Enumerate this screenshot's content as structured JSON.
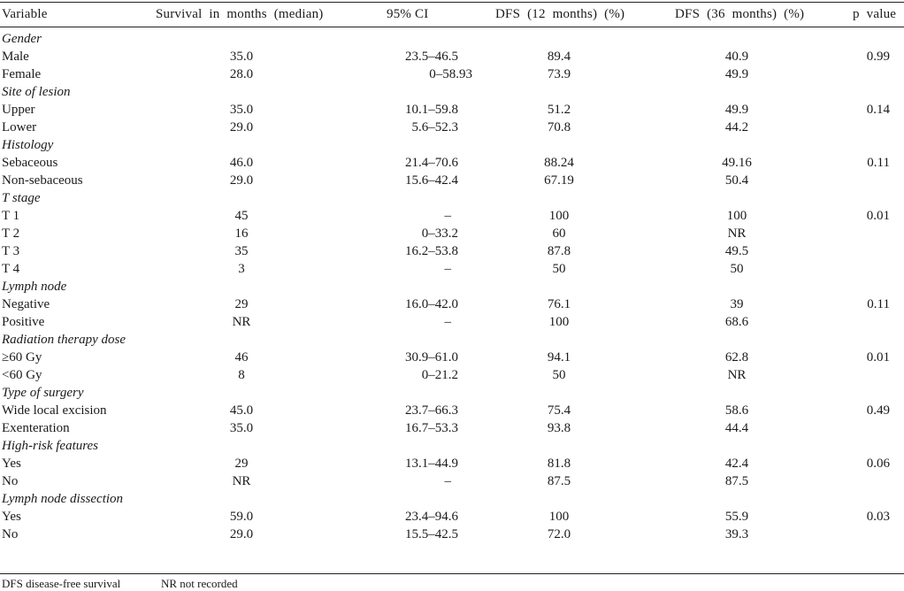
{
  "table": {
    "headers": [
      "Variable",
      "Survival in months (median)",
      "95% CI",
      "DFS (12 months) (%)",
      "DFS (36 months) (%)",
      "p value"
    ],
    "rows": [
      {
        "kind": "section",
        "variable": "Gender"
      },
      {
        "kind": "data",
        "variable": "Male",
        "survival": "35.0",
        "ci": "23.5–46.5",
        "dfs12": "89.4",
        "dfs36": "40.9",
        "p": "0.99"
      },
      {
        "kind": "data",
        "variable": "Female",
        "survival": "28.0",
        "ci": "0–58.93",
        "dfs12": "73.9",
        "dfs36": "49.9",
        "p": ""
      },
      {
        "kind": "section",
        "variable": "Site of lesion"
      },
      {
        "kind": "data",
        "variable": "Upper",
        "survival": "35.0",
        "ci": "10.1–59.8",
        "dfs12": "51.2",
        "dfs36": "49.9",
        "p": "0.14"
      },
      {
        "kind": "data",
        "variable": "Lower",
        "survival": "29.0",
        "ci": "5.6–52.3",
        "dfs12": "70.8",
        "dfs36": "44.2",
        "p": ""
      },
      {
        "kind": "section",
        "variable": "Histology"
      },
      {
        "kind": "data",
        "variable": "Sebaceous",
        "survival": "46.0",
        "ci": "21.4–70.6",
        "dfs12": "88.24",
        "dfs36": "49.16",
        "p": "0.11"
      },
      {
        "kind": "data",
        "variable": "Non-sebaceous",
        "survival": "29.0",
        "ci": "15.6–42.4",
        "dfs12": "67.19",
        "dfs36": "50.4",
        "p": ""
      },
      {
        "kind": "section",
        "variable": "T stage"
      },
      {
        "kind": "data",
        "variable": "T 1",
        "survival": "45",
        "ci": "–",
        "dfs12": "100",
        "dfs36": "100",
        "p": "0.01"
      },
      {
        "kind": "data",
        "variable": "T 2",
        "survival": "16",
        "ci": "0–33.2",
        "dfs12": "60",
        "dfs36": "NR",
        "p": ""
      },
      {
        "kind": "data",
        "variable": "T 3",
        "survival": "35",
        "ci": "16.2–53.8",
        "dfs12": "87.8",
        "dfs36": "49.5",
        "p": ""
      },
      {
        "kind": "data",
        "variable": "T 4",
        "survival": "3",
        "ci": "–",
        "dfs12": "50",
        "dfs36": "50",
        "p": ""
      },
      {
        "kind": "section",
        "variable": "Lymph node"
      },
      {
        "kind": "data",
        "variable": "Negative",
        "survival": "29",
        "ci": "16.0–42.0",
        "dfs12": "76.1",
        "dfs36": "39",
        "p": "0.11"
      },
      {
        "kind": "data",
        "variable": "Positive",
        "survival": "NR",
        "ci": "–",
        "dfs12": "100",
        "dfs36": "68.6",
        "p": ""
      },
      {
        "kind": "section",
        "variable": "Radiation therapy dose"
      },
      {
        "kind": "data",
        "variable": "≥60 Gy",
        "survival": "46",
        "ci": "30.9–61.0",
        "dfs12": "94.1",
        "dfs36": "62.8",
        "p": "0.01"
      },
      {
        "kind": "data",
        "variable": "<60 Gy",
        "survival": "8",
        "ci": "0–21.2",
        "dfs12": "50",
        "dfs36": "NR",
        "p": ""
      },
      {
        "kind": "section",
        "variable": "Type of surgery"
      },
      {
        "kind": "data",
        "variable": "Wide local excision",
        "survival": "45.0",
        "ci": "23.7–66.3",
        "dfs12": "75.4",
        "dfs36": "58.6",
        "p": "0.49"
      },
      {
        "kind": "data",
        "variable": "Exenteration",
        "survival": "35.0",
        "ci": "16.7–53.3",
        "dfs12": "93.8",
        "dfs36": "44.4",
        "p": ""
      },
      {
        "kind": "section",
        "variable": "High-risk features"
      },
      {
        "kind": "data",
        "variable": "Yes",
        "survival": "29",
        "ci": "13.1–44.9",
        "dfs12": "81.8",
        "dfs36": "42.4",
        "p": "0.06"
      },
      {
        "kind": "data",
        "variable": "No",
        "survival": "NR",
        "ci": "–",
        "dfs12": "87.5",
        "dfs36": "87.5",
        "p": ""
      },
      {
        "kind": "section",
        "variable": "Lymph node dissection"
      },
      {
        "kind": "data",
        "variable": "Yes",
        "survival": "59.0",
        "ci": "23.4–94.6",
        "dfs12": "100",
        "dfs36": "55.9",
        "p": "0.03"
      },
      {
        "kind": "data",
        "variable": "No",
        "survival": "29.0",
        "ci": "15.5–42.5",
        "dfs12": "72.0",
        "dfs36": "39.3",
        "p": ""
      }
    ]
  },
  "footnote": {
    "dfs": "DFS disease-free survival",
    "nr": "NR not recorded"
  }
}
